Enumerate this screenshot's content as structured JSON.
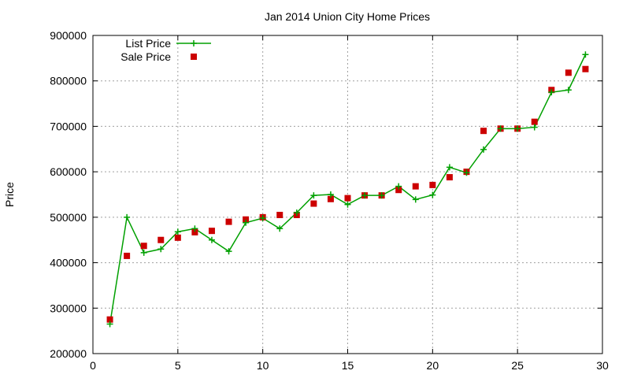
{
  "chart_data": {
    "type": "line",
    "title": "Jan 2014 Union City Home Prices",
    "xlabel": "",
    "ylabel": "Price",
    "xlim": [
      0,
      30
    ],
    "ylim": [
      200000,
      900000
    ],
    "xticks": [
      0,
      5,
      10,
      15,
      20,
      25,
      30
    ],
    "yticks": [
      200000,
      300000,
      400000,
      500000,
      600000,
      700000,
      800000,
      900000
    ],
    "grid": true,
    "legend_position": "top-left",
    "series": [
      {
        "name": "List Price",
        "style": "line-with-plus-markers",
        "color": "#00a000",
        "x": [
          1,
          2,
          3,
          4,
          5,
          6,
          7,
          8,
          9,
          10,
          11,
          12,
          13,
          14,
          15,
          16,
          17,
          18,
          19,
          20,
          21,
          22,
          23,
          24,
          25,
          26,
          27,
          28,
          29
        ],
        "values": [
          265000,
          500000,
          422000,
          430000,
          468000,
          475000,
          450000,
          425000,
          488000,
          498000,
          475000,
          510000,
          548000,
          550000,
          528000,
          548000,
          548000,
          568000,
          539000,
          549000,
          610000,
          598000,
          649000,
          695000,
          695000,
          698000,
          775000,
          780000,
          858000
        ]
      },
      {
        "name": "Sale Price",
        "style": "square-markers",
        "color": "#cc0000",
        "x": [
          1,
          2,
          3,
          4,
          5,
          6,
          7,
          8,
          9,
          10,
          11,
          12,
          13,
          14,
          15,
          16,
          17,
          18,
          19,
          20,
          21,
          22,
          23,
          24,
          25,
          26,
          27,
          28,
          29
        ],
        "values": [
          275000,
          415000,
          437000,
          450000,
          455000,
          467000,
          470000,
          490000,
          495000,
          500000,
          505000,
          505000,
          530000,
          540000,
          542000,
          548000,
          548000,
          560000,
          568000,
          571000,
          588000,
          600000,
          690000,
          695000,
          695000,
          710000,
          780000,
          818000,
          826000
        ]
      }
    ]
  }
}
